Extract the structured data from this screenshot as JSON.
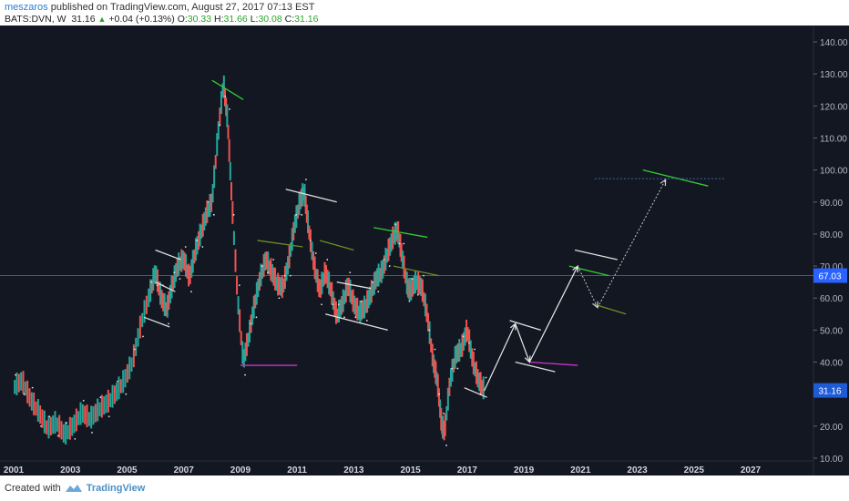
{
  "header": {
    "author": "meszaros",
    "published": "published on TradingView.com, August 27, 2017 07:13 EST",
    "symbol": "BATS:DVN, W",
    "last": "31.16",
    "change": "+0.04 (+0.13%)",
    "o_label": "O:",
    "o_value": "30.33",
    "h_label": "H:",
    "h_value": "31.66",
    "l_label": "L:",
    "l_value": "30.08",
    "c_label": "C:",
    "c_value": "31.16"
  },
  "footer": {
    "created_with": "Created with",
    "brand": "TradingView",
    "icon": "tradingview-logo-icon"
  },
  "colors": {
    "background": "#131722",
    "up": "#26a69a",
    "down": "#ef5350",
    "green_line": "#33cc33",
    "magenta_line": "#cc33cc",
    "white_line": "#e0e0e0",
    "olive_line": "#6b8e23",
    "hline": "#2a5fa5"
  },
  "chart_data": {
    "type": "line",
    "title": "",
    "xlabel": "",
    "ylabel": "",
    "xlim": [
      2000.9,
      2029.3
    ],
    "ylim": [
      10,
      143
    ],
    "x_ticks": [
      "2001",
      "2003",
      "2005",
      "2007",
      "2009",
      "2011",
      "2013",
      "2015",
      "2017",
      "2019",
      "2021",
      "2023",
      "2025",
      "2027"
    ],
    "y_ticks": [
      "140.00",
      "130.00",
      "120.00",
      "110.00",
      "100.00",
      "90.00",
      "80.00",
      "70.00",
      "60.00",
      "50.00",
      "40.00",
      "30.00",
      "20.00",
      "10.00"
    ],
    "y_tick_values": [
      140,
      130,
      120,
      110,
      100,
      90,
      80,
      70,
      60,
      50,
      40,
      30,
      20,
      10
    ],
    "horizontal_line": {
      "value": 67.03,
      "label": "67.03"
    },
    "last_price": {
      "value": 31.16,
      "label": "31.16"
    },
    "series": [
      {
        "values": [
          [
            2001.0,
            32
          ],
          [
            2001.3,
            34
          ],
          [
            2001.6,
            28
          ],
          [
            2001.9,
            24
          ],
          [
            2002.2,
            19
          ],
          [
            2002.5,
            21
          ],
          [
            2002.8,
            17
          ],
          [
            2003.1,
            20
          ],
          [
            2003.4,
            24
          ],
          [
            2003.7,
            22
          ],
          [
            2004.0,
            25
          ],
          [
            2004.3,
            27
          ],
          [
            2004.6,
            30
          ],
          [
            2004.9,
            34
          ],
          [
            2005.2,
            40
          ],
          [
            2005.5,
            52
          ],
          [
            2005.8,
            61
          ],
          [
            2006.0,
            68
          ],
          [
            2006.2,
            60
          ],
          [
            2006.4,
            56
          ],
          [
            2006.6,
            64
          ],
          [
            2006.8,
            70
          ],
          [
            2007.0,
            72
          ],
          [
            2007.2,
            66
          ],
          [
            2007.4,
            74
          ],
          [
            2007.6,
            80
          ],
          [
            2007.8,
            86
          ],
          [
            2008.0,
            90
          ],
          [
            2008.2,
            110
          ],
          [
            2008.4,
            127
          ],
          [
            2008.55,
            115
          ],
          [
            2008.7,
            90
          ],
          [
            2008.9,
            60
          ],
          [
            2009.1,
            40
          ],
          [
            2009.3,
            48
          ],
          [
            2009.5,
            58
          ],
          [
            2009.7,
            66
          ],
          [
            2009.9,
            72
          ],
          [
            2010.1,
            68
          ],
          [
            2010.3,
            64
          ],
          [
            2010.5,
            63
          ],
          [
            2010.7,
            71
          ],
          [
            2010.9,
            82
          ],
          [
            2011.1,
            90
          ],
          [
            2011.25,
            93
          ],
          [
            2011.4,
            82
          ],
          [
            2011.6,
            70
          ],
          [
            2011.8,
            62
          ],
          [
            2012.0,
            68
          ],
          [
            2012.2,
            62
          ],
          [
            2012.4,
            54
          ],
          [
            2012.6,
            58
          ],
          [
            2012.8,
            64
          ],
          [
            2013.0,
            58
          ],
          [
            2013.2,
            55
          ],
          [
            2013.4,
            57
          ],
          [
            2013.6,
            61
          ],
          [
            2013.8,
            66
          ],
          [
            2014.0,
            68
          ],
          [
            2014.2,
            74
          ],
          [
            2014.4,
            79
          ],
          [
            2014.55,
            81
          ],
          [
            2014.7,
            73
          ],
          [
            2014.9,
            63
          ],
          [
            2015.0,
            62
          ],
          [
            2015.2,
            65
          ],
          [
            2015.4,
            63
          ],
          [
            2015.6,
            54
          ],
          [
            2015.8,
            40
          ],
          [
            2015.95,
            34
          ],
          [
            2016.1,
            20
          ],
          [
            2016.2,
            18
          ],
          [
            2016.4,
            34
          ],
          [
            2016.6,
            42
          ],
          [
            2016.8,
            44
          ],
          [
            2017.0,
            50
          ],
          [
            2017.2,
            40
          ],
          [
            2017.4,
            34
          ],
          [
            2017.6,
            31.16
          ]
        ]
      }
    ],
    "projection_white": [
      [
        2017.6,
        31
      ],
      [
        2018.7,
        52
      ],
      [
        2019.2,
        40
      ],
      [
        2020.9,
        70
      ]
    ],
    "projection_dotted": [
      [
        2020.9,
        70
      ],
      [
        2021.6,
        57
      ],
      [
        2024.0,
        97
      ]
    ]
  }
}
